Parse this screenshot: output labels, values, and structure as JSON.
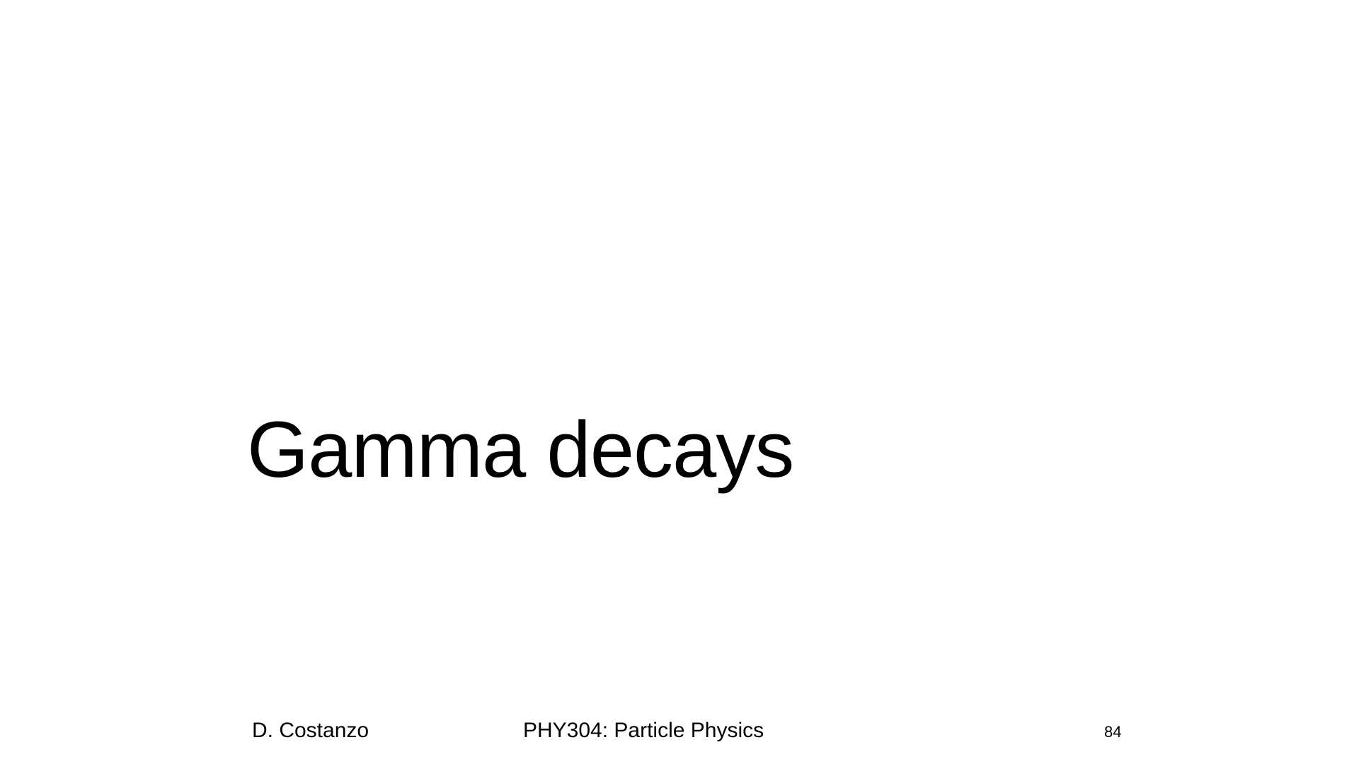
{
  "slide": {
    "title": "Gamma decays"
  },
  "footer": {
    "author": "D. Costanzo",
    "course": "PHY304: Particle Physics",
    "page_number": "84"
  },
  "colors": {
    "background": "#ffffff",
    "text": "#000000"
  }
}
